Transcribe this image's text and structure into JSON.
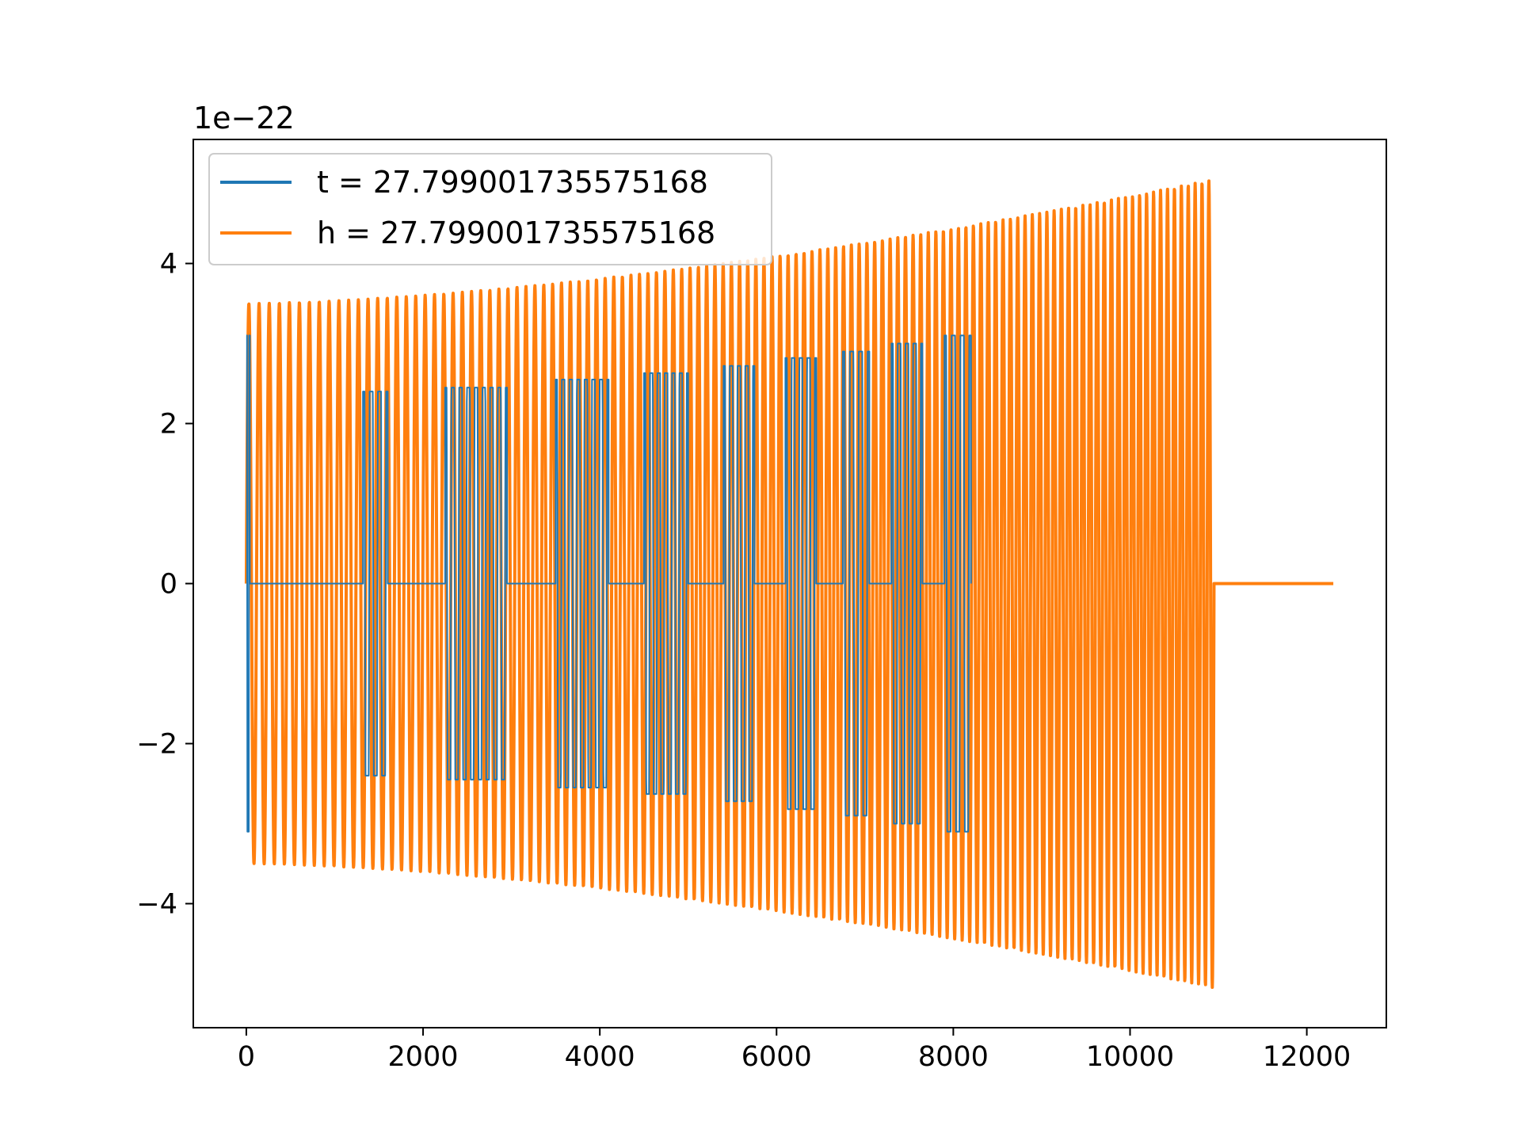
{
  "chart_data": {
    "type": "line",
    "title": "",
    "xlabel": "",
    "ylabel": "",
    "y_offset_label": "1e−22",
    "xlim": [
      -600,
      12900
    ],
    "ylim": [
      -5.55,
      5.55
    ],
    "x_ticks": [
      0,
      2000,
      4000,
      6000,
      8000,
      10000,
      12000
    ],
    "x_tick_labels": [
      "0",
      "2000",
      "4000",
      "6000",
      "8000",
      "10000",
      "12000"
    ],
    "y_ticks": [
      -4,
      -2,
      0,
      2,
      4
    ],
    "y_tick_labels": [
      "−4",
      "−2",
      "0",
      "2",
      "4"
    ],
    "grid": false,
    "legend": "upper-left",
    "series": [
      {
        "name": "t = 27.799001735575168",
        "color": "#1f77b4",
        "description": "burst-sampled sinusoid, zero between bursts, ends ~8200",
        "x_start": 0,
        "x_end": 8200,
        "amplitude_start": 3.1,
        "amplitude_end": 3.1,
        "bursts": [
          {
            "x_start": 0,
            "x_end": 40,
            "amplitude": 3.1
          },
          {
            "x_start": 1320,
            "x_end": 1600,
            "amplitude": 2.4
          },
          {
            "x_start": 2250,
            "x_end": 2950,
            "amplitude": 2.45
          },
          {
            "x_start": 3500,
            "x_end": 4100,
            "amplitude": 2.55
          },
          {
            "x_start": 4500,
            "x_end": 5000,
            "amplitude": 2.63
          },
          {
            "x_start": 5400,
            "x_end": 5750,
            "amplitude": 2.72
          },
          {
            "x_start": 6100,
            "x_end": 6450,
            "amplitude": 2.82
          },
          {
            "x_start": 6750,
            "x_end": 7050,
            "amplitude": 2.9
          },
          {
            "x_start": 7300,
            "x_end": 7650,
            "amplitude": 3.0
          },
          {
            "x_start": 7900,
            "x_end": 8200,
            "amplitude": 3.1
          }
        ]
      },
      {
        "name": "h = 27.799001735575168",
        "color": "#ff7f0e",
        "description": "chirp-like oscillation with growing amplitude, flat zero after ~10950",
        "x_start": 0,
        "x_end": 10950,
        "flat_end": 12300,
        "amplitude_start": 3.5,
        "amplitude_end": 5.05,
        "cycles": 118
      }
    ]
  }
}
